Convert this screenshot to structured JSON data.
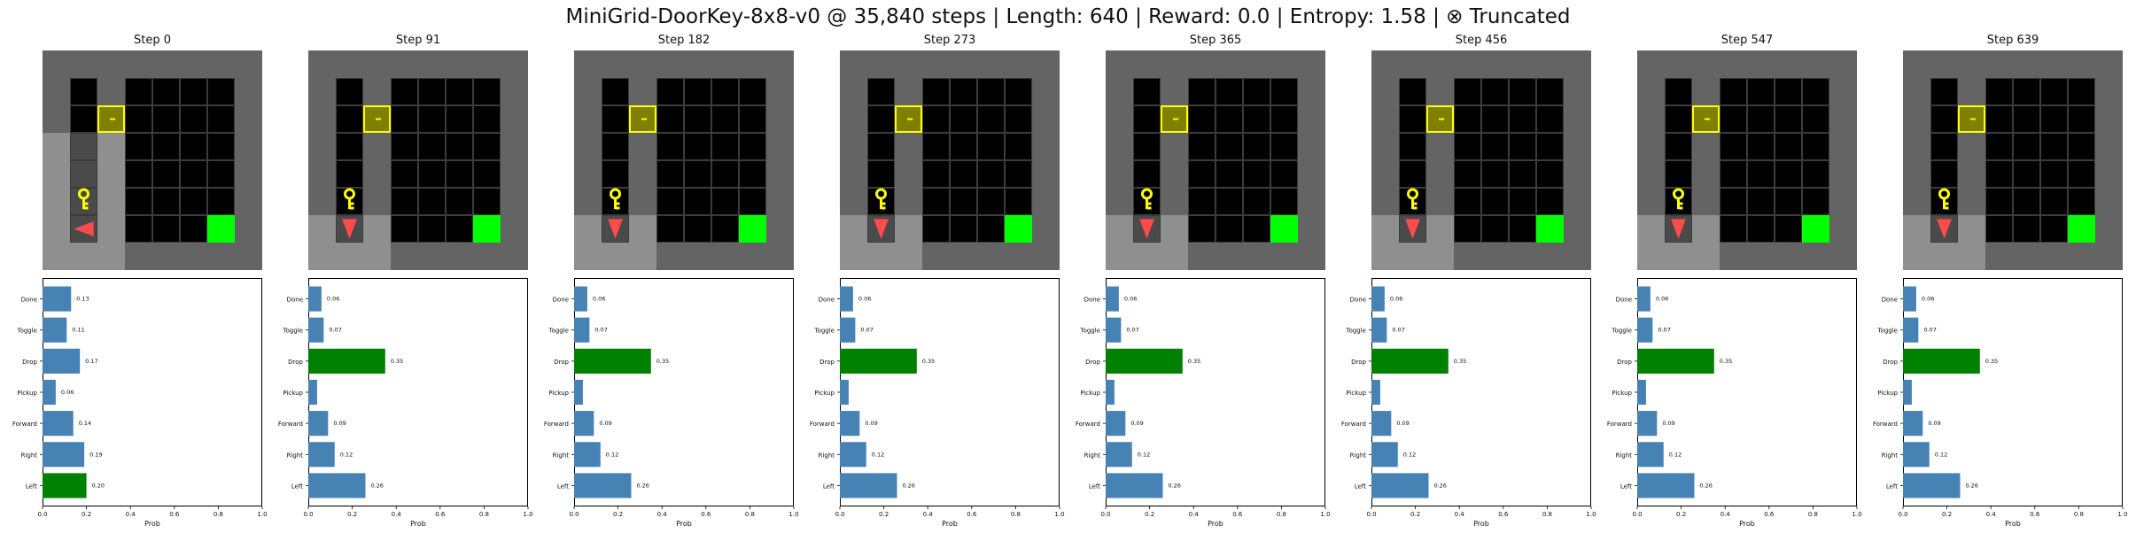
{
  "figure_title": "MiniGrid-DoorKey-8x8-v0 @ 35,840 steps | Length: 640 | Reward: 0.0 | Entropy: 1.58 | ⊗ Truncated",
  "colors": {
    "wall": "#646464",
    "floor": "#000000",
    "visible_floor": "#8f8f8f",
    "grid_line": "#3c3c3c",
    "door": "#7f7f00",
    "door_border": "#ffff00",
    "key": "#ffff00",
    "goal": "#00ff00",
    "agent": "#ff4b4b",
    "bar_default": "#4682b4",
    "bar_selected": "#008000"
  },
  "environment": {
    "icons": {
      "key": "key-icon",
      "door": "door-icon",
      "goal": "goal-tile",
      "agent": "agent-triangle-icon"
    },
    "grid_size": 8
  },
  "chart_data": [
    {
      "type": "barh",
      "title": "Step 0",
      "agent_direction": "left",
      "selected_action": "Left",
      "categories": [
        "Left",
        "Right",
        "Forward",
        "Pickup",
        "Drop",
        "Toggle",
        "Done"
      ],
      "values": [
        0.2,
        0.19,
        0.14,
        0.06,
        0.17,
        0.11,
        0.13
      ],
      "value_labels": [
        "0.20",
        "0.19",
        "0.14",
        "0.06",
        "0.17",
        "0.11",
        "0.13"
      ],
      "xlabel": "Prob",
      "xlim": [
        0,
        1.0
      ],
      "xticks": [
        "0.0",
        "0.2",
        "0.4",
        "0.6",
        "0.8",
        "1.0"
      ]
    },
    {
      "type": "barh",
      "title": "Step 91",
      "agent_direction": "down",
      "selected_action": "Drop",
      "categories": [
        "Left",
        "Right",
        "Forward",
        "Pickup",
        "Drop",
        "Toggle",
        "Done"
      ],
      "values": [
        0.26,
        0.12,
        0.09,
        0.04,
        0.35,
        0.07,
        0.06
      ],
      "value_labels": [
        "0.26",
        "0.12",
        "0.09",
        "",
        "0.35",
        "0.07",
        "0.06"
      ],
      "xlabel": "Prob",
      "xlim": [
        0,
        1.0
      ],
      "xticks": [
        "0.0",
        "0.2",
        "0.4",
        "0.6",
        "0.8",
        "1.0"
      ]
    },
    {
      "type": "barh",
      "title": "Step 182",
      "agent_direction": "down",
      "selected_action": "Drop",
      "categories": [
        "Left",
        "Right",
        "Forward",
        "Pickup",
        "Drop",
        "Toggle",
        "Done"
      ],
      "values": [
        0.26,
        0.12,
        0.09,
        0.04,
        0.35,
        0.07,
        0.06
      ],
      "value_labels": [
        "0.26",
        "0.12",
        "0.09",
        "",
        "0.35",
        "0.07",
        "0.06"
      ],
      "xlabel": "Prob",
      "xlim": [
        0,
        1.0
      ],
      "xticks": [
        "0.0",
        "0.2",
        "0.4",
        "0.6",
        "0.8",
        "1.0"
      ]
    },
    {
      "type": "barh",
      "title": "Step 273",
      "agent_direction": "down",
      "selected_action": "Drop",
      "categories": [
        "Left",
        "Right",
        "Forward",
        "Pickup",
        "Drop",
        "Toggle",
        "Done"
      ],
      "values": [
        0.26,
        0.12,
        0.09,
        0.04,
        0.35,
        0.07,
        0.06
      ],
      "value_labels": [
        "0.26",
        "0.12",
        "0.09",
        "",
        "0.35",
        "0.07",
        "0.06"
      ],
      "xlabel": "Prob",
      "xlim": [
        0,
        1.0
      ],
      "xticks": [
        "0.0",
        "0.2",
        "0.4",
        "0.6",
        "0.8",
        "1.0"
      ]
    },
    {
      "type": "barh",
      "title": "Step 365",
      "agent_direction": "down",
      "selected_action": "Drop",
      "categories": [
        "Left",
        "Right",
        "Forward",
        "Pickup",
        "Drop",
        "Toggle",
        "Done"
      ],
      "values": [
        0.26,
        0.12,
        0.09,
        0.04,
        0.35,
        0.07,
        0.06
      ],
      "value_labels": [
        "0.26",
        "0.12",
        "0.09",
        "",
        "0.35",
        "0.07",
        "0.06"
      ],
      "xlabel": "Prob",
      "xlim": [
        0,
        1.0
      ],
      "xticks": [
        "0.0",
        "0.2",
        "0.4",
        "0.6",
        "0.8",
        "1.0"
      ]
    },
    {
      "type": "barh",
      "title": "Step 456",
      "agent_direction": "down",
      "selected_action": "Drop",
      "categories": [
        "Left",
        "Right",
        "Forward",
        "Pickup",
        "Drop",
        "Toggle",
        "Done"
      ],
      "values": [
        0.26,
        0.12,
        0.09,
        0.04,
        0.35,
        0.07,
        0.06
      ],
      "value_labels": [
        "0.26",
        "0.12",
        "0.09",
        "",
        "0.35",
        "0.07",
        "0.06"
      ],
      "xlabel": "Prob",
      "xlim": [
        0,
        1.0
      ],
      "xticks": [
        "0.0",
        "0.2",
        "0.4",
        "0.6",
        "0.8",
        "1.0"
      ]
    },
    {
      "type": "barh",
      "title": "Step 547",
      "agent_direction": "down",
      "selected_action": "Drop",
      "categories": [
        "Left",
        "Right",
        "Forward",
        "Pickup",
        "Drop",
        "Toggle",
        "Done"
      ],
      "values": [
        0.26,
        0.12,
        0.09,
        0.04,
        0.35,
        0.07,
        0.06
      ],
      "value_labels": [
        "0.26",
        "0.12",
        "0.09",
        "",
        "0.35",
        "0.07",
        "0.06"
      ],
      "xlabel": "Prob",
      "xlim": [
        0,
        1.0
      ],
      "xticks": [
        "0.0",
        "0.2",
        "0.4",
        "0.6",
        "0.8",
        "1.0"
      ]
    },
    {
      "type": "barh",
      "title": "Step 639",
      "agent_direction": "down",
      "selected_action": "Drop",
      "categories": [
        "Left",
        "Right",
        "Forward",
        "Pickup",
        "Drop",
        "Toggle",
        "Done"
      ],
      "values": [
        0.26,
        0.12,
        0.09,
        0.04,
        0.35,
        0.07,
        0.06
      ],
      "value_labels": [
        "0.26",
        "0.12",
        "0.09",
        "",
        "0.35",
        "0.07",
        "0.06"
      ],
      "xlabel": "Prob",
      "xlim": [
        0,
        1.0
      ],
      "xticks": [
        "0.0",
        "0.2",
        "0.4",
        "0.6",
        "0.8",
        "1.0"
      ]
    }
  ]
}
